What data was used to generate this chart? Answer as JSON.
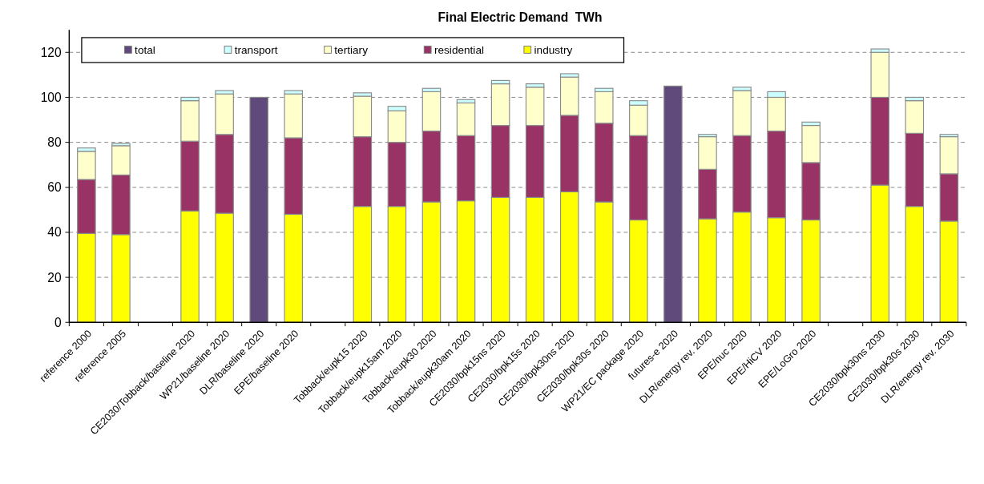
{
  "chart_data": {
    "type": "bar",
    "title": "Final Electric Demand  TWh",
    "stacked": true,
    "grid": "y",
    "legend": "top",
    "categories": [
      "reference 2000",
      "reference 2005",
      null,
      "CE2030/Tobback/baseline 2020",
      "WP21/baseline 2020",
      "DLR/baseline 2020",
      "EPE/baseline 2020",
      null,
      "Tobback/eupk15 2020",
      "Tobback/eupk15am 2020",
      "Tobback/eupk30 2020",
      "Tobback/eupk30am 2020",
      "CE2030/bpk15ns 2020",
      "CE2030/bpk15s 2020",
      "CE2030/bpk30ns 2020",
      "CE2030/bpk30s 2020",
      "WP21/EC package 2020",
      "futures-e 2020",
      "DLR/energy rev. 2020",
      "EPE/nuc 2020",
      "EPE/HiCV 2020",
      "EPE/LoGro 2020",
      null,
      "CE2030/bpk30ns 2030",
      "CE2030/bpk30s 2030",
      "DLR/energy rev. 2030"
    ],
    "series": [
      {
        "name": "industry",
        "color": "#ffff00",
        "values": [
          39.5,
          39,
          null,
          49.5,
          48.5,
          null,
          48,
          null,
          51.5,
          51.5,
          53.5,
          54,
          55.5,
          55.5,
          58,
          53.5,
          45.5,
          null,
          46,
          49,
          46.5,
          45.5,
          null,
          61,
          51.5,
          45
        ]
      },
      {
        "name": "residential",
        "color": "#993366",
        "values": [
          24,
          26.5,
          null,
          31,
          35,
          null,
          34,
          null,
          31,
          28.5,
          31.5,
          29,
          32,
          32,
          34,
          35,
          37.5,
          null,
          22,
          34,
          38.5,
          25.5,
          null,
          39,
          32.5,
          21
        ]
      },
      {
        "name": "tertiary",
        "color": "#ffffcc",
        "values": [
          12.5,
          13,
          null,
          18,
          18,
          null,
          19.5,
          null,
          18,
          14,
          17.5,
          14.5,
          18.5,
          17,
          17,
          14,
          13.5,
          null,
          14.5,
          20,
          15,
          16.5,
          null,
          20,
          14.5,
          16.5
        ]
      },
      {
        "name": "transport",
        "color": "#ccffff",
        "values": [
          1.5,
          1,
          null,
          1.5,
          1.5,
          null,
          1.5,
          null,
          1.5,
          2,
          1.5,
          1.5,
          1.5,
          1.5,
          1.5,
          1.5,
          2,
          null,
          1,
          1.5,
          2.5,
          1.5,
          null,
          1.5,
          1.5,
          1
        ]
      },
      {
        "name": "total",
        "color": "#604a7b",
        "values": [
          null,
          null,
          null,
          null,
          null,
          100,
          null,
          null,
          null,
          null,
          null,
          null,
          null,
          null,
          null,
          null,
          null,
          105,
          null,
          null,
          null,
          null,
          null,
          null,
          null,
          null
        ]
      }
    ],
    "ylim": [
      0,
      130
    ],
    "yticks": [
      0,
      20,
      40,
      60,
      80,
      100,
      120
    ]
  }
}
